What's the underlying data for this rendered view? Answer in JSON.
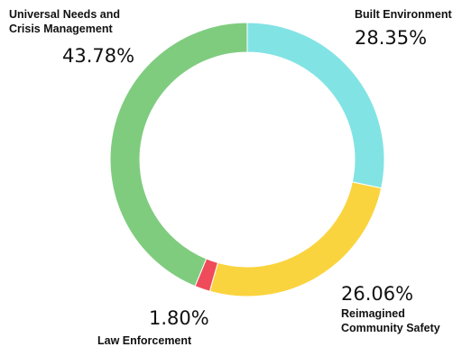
{
  "chart_data": {
    "type": "pie",
    "donut": true,
    "title": "",
    "legend": "none",
    "slices": [
      {
        "label_lines": [
          "Built Environment"
        ],
        "value": 28.35,
        "value_label": "28.35%",
        "color": "#82E3E4"
      },
      {
        "label_lines": [
          "Reimagined",
          "Community Safety"
        ],
        "value": 26.06,
        "value_label": "26.06%",
        "color": "#FAD43F"
      },
      {
        "label_lines": [
          "Law Enforcement"
        ],
        "value": 1.8,
        "value_label": "1.80%",
        "color": "#EF4B5B"
      },
      {
        "label_lines": [
          "Universal Needs and",
          "Crisis Management"
        ],
        "value": 43.78,
        "value_label": "43.78%",
        "color": "#7FCC7F"
      }
    ]
  }
}
